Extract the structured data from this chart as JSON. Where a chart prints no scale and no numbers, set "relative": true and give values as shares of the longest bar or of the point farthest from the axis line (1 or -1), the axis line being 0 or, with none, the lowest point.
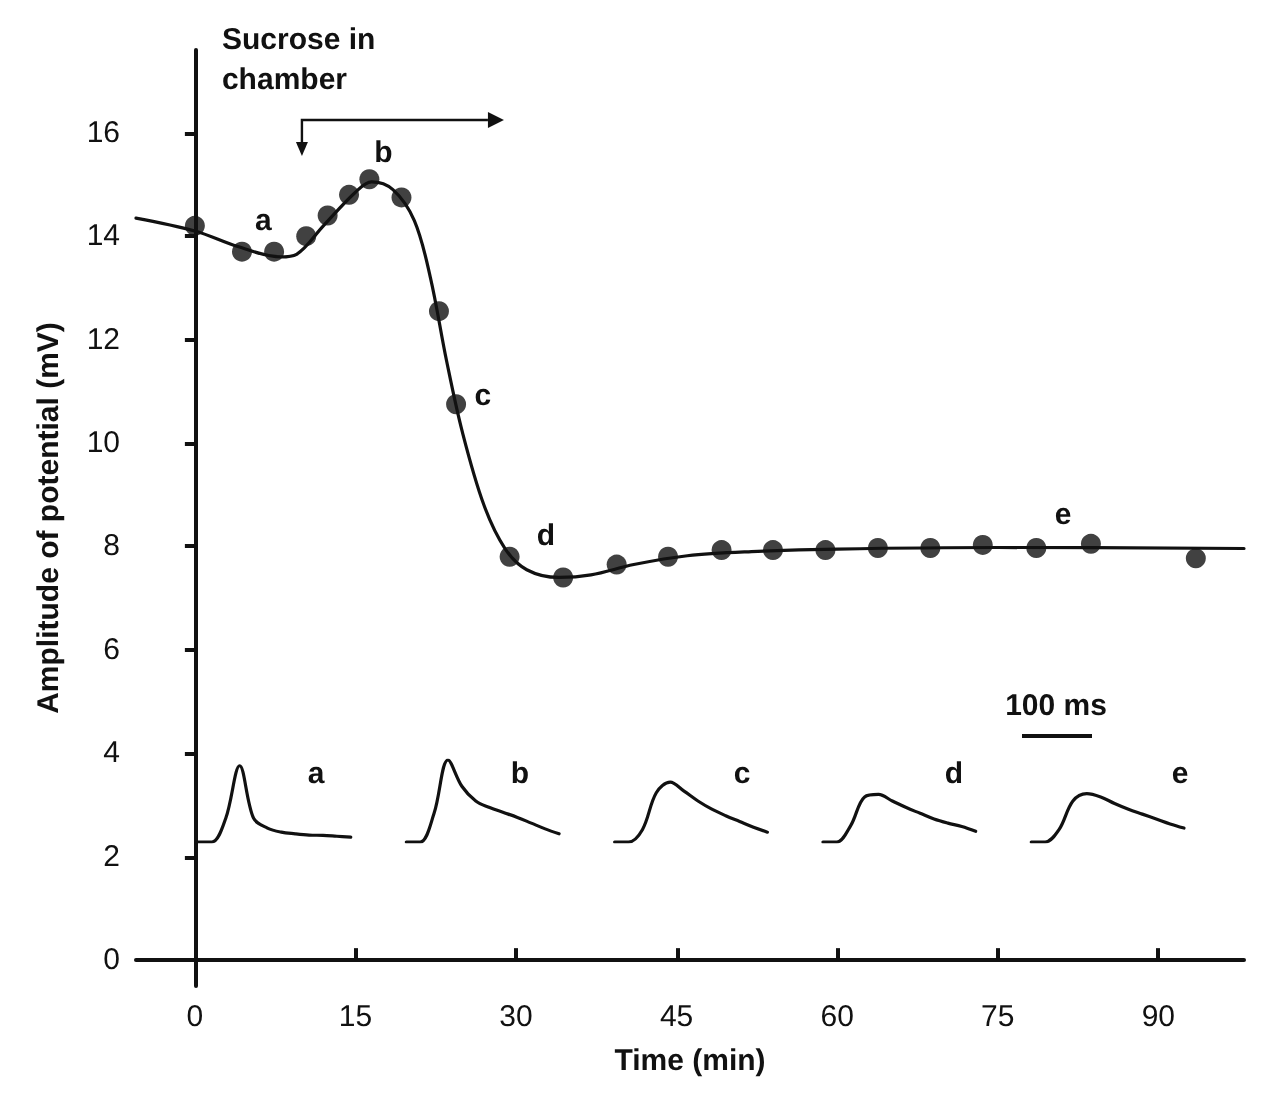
{
  "chart_data": [
    {
      "type": "scatter",
      "xlabel": "Time (min)",
      "ylabel": "Amplitude of potential (mV)",
      "xlim": [
        -5.5,
        98
      ],
      "xticks": [
        0,
        15,
        30,
        45,
        60,
        75,
        90
      ],
      "ylim": [
        -0.5,
        17.6
      ],
      "yticks": [
        0,
        2,
        4,
        6,
        8,
        10,
        12,
        14,
        16
      ],
      "grid": false,
      "marker": "circle",
      "series": [
        {
          "color": "#111111",
          "x": [
            0,
            4.4,
            7.4,
            10.4,
            12.4,
            14.4,
            16.3,
            19.3,
            22.8,
            24.4,
            29.4,
            34.4,
            39.4,
            44.2,
            49.2,
            54,
            58.9,
            63.8,
            68.7,
            73.6,
            78.6,
            83.7,
            93.5
          ],
          "values": [
            14.2,
            13.7,
            13.7,
            14,
            14.4,
            14.8,
            15.1,
            14.75,
            12.55,
            10.75,
            7.8,
            7.4,
            7.65,
            7.8,
            7.93,
            7.93,
            7.93,
            7.97,
            7.97,
            8.03,
            7.97,
            8.05,
            7.77
          ]
        },
        {
          "type": "line",
          "color": "#111111",
          "marker": "none",
          "line_style": "solid",
          "x": [
            -5.5,
            0,
            4,
            8,
            9.5,
            12,
            15,
            16.5,
            18.5,
            20.5,
            22,
            23.5,
            25,
            27,
            29,
            31,
            34,
            37,
            41,
            46,
            52,
            60,
            75,
            98
          ],
          "values": [
            14.35,
            14.1,
            13.8,
            13.6,
            13.65,
            14.2,
            14.85,
            15.05,
            14.9,
            14.3,
            13.2,
            11.6,
            10.2,
            8.8,
            7.95,
            7.55,
            7.4,
            7.45,
            7.65,
            7.82,
            7.9,
            7.95,
            7.98,
            7.96
          ]
        }
      ],
      "annotations": [
        "Sucrose in\nchamber",
        "a",
        "b",
        "c",
        "d",
        "e"
      ]
    },
    {
      "type": "line",
      "relative": true,
      "tick_labels": false,
      "grid": false,
      "marker": "none",
      "line_style": "solid",
      "categories": [
        null,
        null,
        null,
        null,
        null,
        null,
        null,
        null,
        null,
        null,
        null,
        null,
        null,
        null,
        null,
        null,
        null,
        null,
        null,
        null,
        null,
        null,
        null,
        null,
        null,
        null,
        null,
        null,
        null,
        null,
        null,
        null,
        null,
        null,
        null,
        null,
        null,
        null,
        null,
        null,
        null,
        null,
        null,
        null,
        null,
        null,
        null,
        null,
        null,
        null,
        null,
        null,
        null,
        null,
        null,
        null,
        null,
        null,
        null,
        null,
        null,
        null,
        null,
        null,
        null,
        null,
        null,
        null,
        null,
        null,
        null,
        null
      ],
      "series": [
        {
          "color": "#111111",
          "values": [
            0,
            0,
            0.29,
            0.93,
            0.29,
            0.17,
            0.12,
            0.1,
            0.085,
            0.08,
            0.07,
            0.06,
            null,
            null,
            null,
            null,
            null,
            null,
            null,
            null,
            null,
            null,
            null,
            null,
            null,
            null,
            null,
            null,
            null,
            null,
            null,
            null,
            null,
            null,
            null,
            null,
            null,
            null,
            null,
            null,
            null,
            null,
            null,
            null,
            null,
            null,
            null,
            null,
            null,
            null,
            null,
            null,
            null,
            null,
            null,
            null,
            null,
            null,
            null,
            null,
            null,
            null,
            null,
            null,
            null,
            null,
            null,
            null,
            null,
            null,
            null,
            null
          ]
        },
        {
          "color": "#111111",
          "values": [
            null,
            null,
            null,
            null,
            null,
            null,
            null,
            null,
            null,
            null,
            null,
            null,
            null,
            null,
            null,
            0,
            0,
            0.35,
            1,
            0.68,
            0.5,
            0.42,
            0.36,
            0.3,
            0.23,
            0.16,
            0.1,
            null,
            null,
            null,
            null,
            null,
            null,
            null,
            null,
            null,
            null,
            null,
            null,
            null,
            null,
            null,
            null,
            null,
            null,
            null,
            null,
            null,
            null,
            null,
            null,
            null,
            null,
            null,
            null,
            null,
            null,
            null,
            null,
            null,
            null,
            null,
            null,
            null,
            null,
            null,
            null,
            null,
            null,
            null,
            null,
            null
          ]
        },
        {
          "color": "#111111",
          "values": [
            null,
            null,
            null,
            null,
            null,
            null,
            null,
            null,
            null,
            null,
            null,
            null,
            null,
            null,
            null,
            null,
            null,
            null,
            null,
            null,
            null,
            null,
            null,
            null,
            null,
            null,
            null,
            null,
            null,
            null,
            0,
            0,
            0.15,
            0.6,
            0.73,
            0.62,
            0.5,
            0.4,
            0.32,
            0.25,
            0.18,
            0.12,
            null,
            null,
            null,
            null,
            null,
            null,
            null,
            null,
            null,
            null,
            null,
            null,
            null,
            null,
            null,
            null,
            null,
            null,
            null,
            null,
            null,
            null,
            null,
            null,
            null,
            null,
            null,
            null,
            null,
            null
          ]
        },
        {
          "color": "#111111",
          "values": [
            null,
            null,
            null,
            null,
            null,
            null,
            null,
            null,
            null,
            null,
            null,
            null,
            null,
            null,
            null,
            null,
            null,
            null,
            null,
            null,
            null,
            null,
            null,
            null,
            null,
            null,
            null,
            null,
            null,
            null,
            null,
            null,
            null,
            null,
            null,
            null,
            null,
            null,
            null,
            null,
            null,
            null,
            null,
            null,
            null,
            0,
            0,
            0.2,
            0.55,
            0.58,
            0.5,
            0.42,
            0.35,
            0.28,
            0.23,
            0.19,
            0.13,
            null,
            null,
            null,
            null,
            null,
            null,
            null,
            null,
            null,
            null,
            null,
            null,
            null,
            null,
            null
          ]
        },
        {
          "color": "#111111",
          "values": [
            null,
            null,
            null,
            null,
            null,
            null,
            null,
            null,
            null,
            null,
            null,
            null,
            null,
            null,
            null,
            null,
            null,
            null,
            null,
            null,
            null,
            null,
            null,
            null,
            null,
            null,
            null,
            null,
            null,
            null,
            null,
            null,
            null,
            null,
            null,
            null,
            null,
            null,
            null,
            null,
            null,
            null,
            null,
            null,
            null,
            null,
            null,
            null,
            null,
            null,
            null,
            null,
            null,
            null,
            null,
            null,
            null,
            null,
            null,
            null,
            0,
            0,
            0.15,
            0.5,
            0.59,
            0.55,
            0.47,
            0.4,
            0.34,
            0.28,
            0.22,
            0.17
          ]
        }
      ],
      "annotations": [
        "a",
        "b",
        "c",
        "d",
        "e",
        "100 ms"
      ]
    }
  ]
}
